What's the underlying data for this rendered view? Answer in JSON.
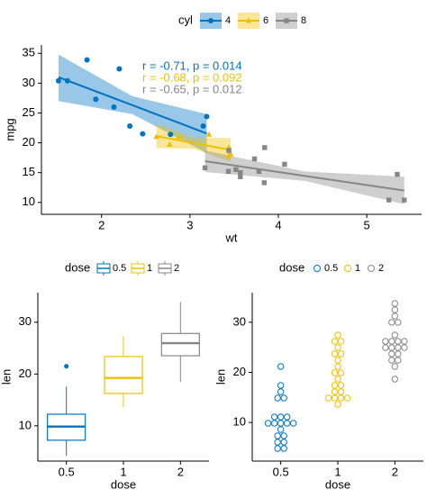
{
  "chart_data": [
    {
      "type": "scatter",
      "xlabel": "wt",
      "ylabel": "mpg",
      "legend_title": "cyl",
      "legend": "top",
      "xlim": [
        1.32,
        5.62
      ],
      "ylim": [
        8.0,
        36.4
      ],
      "xticks": [
        2,
        3,
        4,
        5
      ],
      "yticks": [
        10,
        15,
        20,
        25,
        30,
        35
      ],
      "annotations": [
        "r = -0.71, p = 0.014",
        "r = -0.68, p = 0.092",
        "r = -0.65, p = 0.012"
      ],
      "series": [
        {
          "name": "4",
          "color": "#0073C2",
          "marker": "circle",
          "x": [
            2.32,
            3.19,
            3.15,
            2.2,
            1.615,
            1.835,
            2.465,
            1.935,
            2.14,
            1.513,
            2.78
          ],
          "y": [
            22.8,
            24.4,
            22.8,
            32.4,
            30.4,
            33.9,
            21.5,
            27.3,
            26.0,
            30.4,
            21.4
          ],
          "fit": {
            "x": [
              1.513,
              2.35,
              3.19
            ],
            "y": [
              31.0,
              26.3,
              21.56
            ],
            "lower": [
              27.0,
              24.8,
              18.3
            ],
            "upper": [
              34.8,
              27.8,
              24.8
            ]
          }
        },
        {
          "name": "6",
          "color": "#EFC000",
          "marker": "triangle",
          "x": [
            2.62,
            2.875,
            3.215,
            3.46,
            3.44,
            3.44,
            2.77
          ],
          "y": [
            21.0,
            21.0,
            21.4,
            18.1,
            19.2,
            17.8,
            19.7
          ],
          "fit": {
            "x": [
              2.62,
              3.04,
              3.46
            ],
            "y": [
              21.13,
              19.96,
              18.79
            ],
            "lower": [
              19.1,
              19.0,
              16.8
            ],
            "upper": [
              23.2,
              20.9,
              20.8
            ]
          }
        },
        {
          "name": "8",
          "color": "#868686",
          "marker": "square",
          "x": [
            3.44,
            3.57,
            4.07,
            3.73,
            3.78,
            5.25,
            5.424,
            5.345,
            3.52,
            3.435,
            3.84,
            3.845,
            3.17,
            3.57
          ],
          "y": [
            18.7,
            14.3,
            16.4,
            17.3,
            15.2,
            10.4,
            10.4,
            14.7,
            15.5,
            15.2,
            13.3,
            19.2,
            15.8,
            15.0
          ],
          "fit": {
            "x": [
              3.17,
              4.3,
              5.424
            ],
            "y": [
              16.92,
              14.44,
              11.98
            ],
            "lower": [
              15.1,
              13.6,
              9.7
            ],
            "upper": [
              18.7,
              15.2,
              14.3
            ]
          }
        }
      ]
    },
    {
      "type": "box",
      "xlabel": "dose",
      "ylabel": "len",
      "legend_title": "dose",
      "legend": "top",
      "ylim": [
        3.2,
        35.7
      ],
      "yticks": [
        10,
        20,
        30
      ],
      "categories": [
        "0.5",
        "1",
        "2"
      ],
      "colors": [
        "#0073C2",
        "#EFC000",
        "#868686"
      ],
      "boxes": [
        {
          "min": 4.2,
          "q1": 7.225,
          "median": 9.85,
          "q3": 12.25,
          "max": 17.6,
          "outliers": [
            21.5
          ]
        },
        {
          "min": 13.6,
          "q1": 16.25,
          "median": 19.25,
          "q3": 23.375,
          "max": 27.3,
          "outliers": []
        },
        {
          "min": 18.5,
          "q1": 23.525,
          "median": 25.95,
          "q3": 27.825,
          "max": 33.9,
          "outliers": []
        }
      ]
    },
    {
      "type": "dot",
      "xlabel": "dose",
      "ylabel": "len",
      "legend_title": "dose",
      "legend": "top",
      "ylim": [
        2.3,
        35.9
      ],
      "yticks": [
        10,
        20,
        30
      ],
      "categories": [
        "0.5",
        "1",
        "2"
      ],
      "colors": [
        "#0073C2",
        "#EFC000",
        "#868686"
      ],
      "groups": [
        [
          4.2,
          11.5,
          7.3,
          5.8,
          6.4,
          10,
          11.2,
          11.2,
          5.2,
          7,
          15.2,
          21.5,
          17.6,
          9.7,
          14.5,
          10,
          8.2,
          9.4,
          16.5,
          9.7
        ],
        [
          16.5,
          16.5,
          15.2,
          17.3,
          22.5,
          17.3,
          13.6,
          14.5,
          18.8,
          15.5,
          19.7,
          23.3,
          23.6,
          26.4,
          20,
          25.2,
          25.8,
          21.2,
          14.5,
          27.3
        ],
        [
          23.6,
          18.5,
          33.9,
          25.5,
          26.4,
          32.5,
          26.7,
          21.5,
          23.3,
          29.5,
          25.5,
          26.4,
          22.4,
          24.5,
          24.8,
          30.9,
          26.4,
          27.3,
          29.4,
          23
        ]
      ]
    }
  ]
}
